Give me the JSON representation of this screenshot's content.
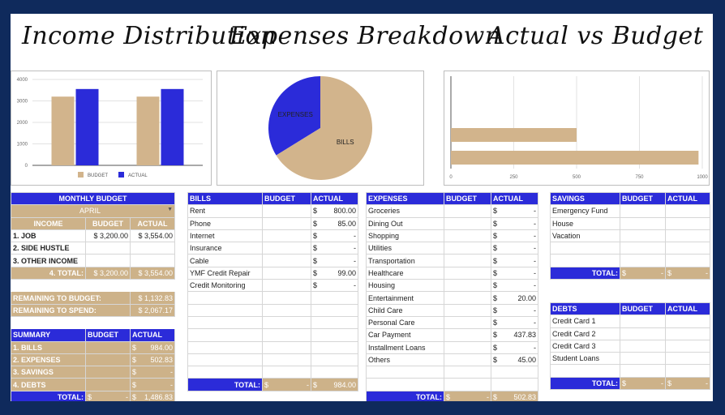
{
  "titles": {
    "income": "Income Distribution",
    "expenses": "Expenses Breakdown",
    "actual_vs_budget": "Actual vs Budget"
  },
  "colors": {
    "budget": "#d2b48c",
    "actual": "#2b2bd9",
    "header": "#2b2bd9",
    "tan": "#cdb289"
  },
  "chart_data": [
    {
      "type": "bar",
      "categories": [
        "",
        ""
      ],
      "series": [
        {
          "name": "BUDGET",
          "values": [
            3200,
            3200
          ]
        },
        {
          "name": "ACTUAL",
          "values": [
            3554,
            3554
          ]
        }
      ],
      "ylim": [
        0,
        4000
      ],
      "yticks": [
        "0",
        "1000",
        "2000",
        "3000",
        "4000"
      ],
      "legend": "bottom",
      "grid": true
    },
    {
      "type": "pie",
      "labels": [
        "EXPENSES",
        "BILLS"
      ],
      "values": [
        502.83,
        984.0
      ]
    },
    {
      "type": "bar",
      "orientation": "horizontal",
      "categories": [
        "",
        ""
      ],
      "values": [
        500,
        985
      ],
      "xlim": [
        0,
        1000
      ],
      "xticks": [
        "0",
        "250",
        "500",
        "750",
        "1000"
      ],
      "grid": true
    }
  ],
  "monthly": {
    "header": "MONTHLY BUDGET",
    "month": "APRIL",
    "cols": [
      "INCOME",
      "BUDGET",
      "ACTUAL"
    ],
    "rows": [
      {
        "label": "1. JOB",
        "budget": "$ 3,200.00",
        "actual": "$ 3,554.00"
      },
      {
        "label": "2. SIDE HUSTLE",
        "budget": "",
        "actual": ""
      },
      {
        "label": "3. OTHER INCOME",
        "budget": "",
        "actual": ""
      }
    ],
    "total_label": "4. TOTAL:",
    "total_budget": "$ 3,200.00",
    "total_actual": "$ 3,554.00",
    "remaining_budget_label": "REMAINING TO BUDGET:",
    "remaining_budget": "$ 1,132.83",
    "remaining_spend_label": "REMAINING TO SPEND:",
    "remaining_spend": "$ 2,067.17"
  },
  "summary": {
    "cols": [
      "SUMMARY",
      "BUDGET",
      "ACTUAL"
    ],
    "rows": [
      {
        "label": "1. BILLS",
        "budget": "",
        "actual_sym": "$",
        "actual": "984.00"
      },
      {
        "label": "2. EXPENSES",
        "budget": "",
        "actual_sym": "$",
        "actual": "502.83"
      },
      {
        "label": "3. SAVINGS",
        "budget": "",
        "actual_sym": "$",
        "actual": "-"
      },
      {
        "label": "4. DEBTS",
        "budget": "",
        "actual_sym": "$",
        "actual": "-"
      }
    ],
    "total_label": "TOTAL:",
    "total_budget_sym": "$",
    "total_budget": "-",
    "total_actual_sym": "$",
    "total_actual": "1,486.83"
  },
  "bills": {
    "cols": [
      "BILLS",
      "BUDGET",
      "ACTUAL"
    ],
    "rows": [
      {
        "label": "Rent",
        "sym": "$",
        "actual": "800.00"
      },
      {
        "label": "Phone",
        "sym": "$",
        "actual": "85.00"
      },
      {
        "label": "Internet",
        "sym": "$",
        "actual": "-"
      },
      {
        "label": "Insurance",
        "sym": "$",
        "actual": "-"
      },
      {
        "label": "Cable",
        "sym": "$",
        "actual": "-"
      },
      {
        "label": "YMF Credit Repair",
        "sym": "$",
        "actual": "99.00"
      },
      {
        "label": "Credit Monitoring",
        "sym": "$",
        "actual": "-"
      }
    ],
    "total_label": "TOTAL:",
    "total_budget_sym": "$",
    "total_budget": "-",
    "total_actual_sym": "$",
    "total_actual": "984.00"
  },
  "expenses": {
    "cols": [
      "EXPENSES",
      "BUDGET",
      "ACTUAL"
    ],
    "rows": [
      {
        "label": "Groceries",
        "sym": "$",
        "actual": "-"
      },
      {
        "label": "Dining Out",
        "sym": "$",
        "actual": "-"
      },
      {
        "label": "Shopping",
        "sym": "$",
        "actual": "-"
      },
      {
        "label": "Utilities",
        "sym": "$",
        "actual": "-"
      },
      {
        "label": "Transportation",
        "sym": "$",
        "actual": "-"
      },
      {
        "label": "Healthcare",
        "sym": "$",
        "actual": "-"
      },
      {
        "label": "Housing",
        "sym": "$",
        "actual": "-"
      },
      {
        "label": "Entertainment",
        "sym": "$",
        "actual": "20.00"
      },
      {
        "label": "Child Care",
        "sym": "$",
        "actual": "-"
      },
      {
        "label": "Personal Care",
        "sym": "$",
        "actual": "-"
      },
      {
        "label": "Car Payment",
        "sym": "$",
        "actual": "437.83"
      },
      {
        "label": "Installment Loans",
        "sym": "$",
        "actual": "-"
      },
      {
        "label": "Others",
        "sym": "$",
        "actual": "45.00"
      }
    ],
    "total_label": "TOTAL:",
    "total_budget_sym": "$",
    "total_budget": "-",
    "total_actual_sym": "$",
    "total_actual": "502.83"
  },
  "savings": {
    "cols": [
      "SAVINGS",
      "BUDGET",
      "ACTUAL"
    ],
    "rows": [
      {
        "label": "Emergency Fund"
      },
      {
        "label": "House"
      },
      {
        "label": "Vacation"
      }
    ],
    "total_label": "TOTAL:",
    "total_budget_sym": "$",
    "total_budget": "-",
    "total_actual_sym": "$",
    "total_actual": "-"
  },
  "debts": {
    "cols": [
      "DEBTS",
      "BUDGET",
      "ACTUAL"
    ],
    "rows": [
      {
        "label": "Credit Card 1"
      },
      {
        "label": "Credit Card 2"
      },
      {
        "label": "Credit Card 3"
      },
      {
        "label": "Student Loans"
      }
    ],
    "total_label": "TOTAL:",
    "total_budget_sym": "$",
    "total_budget": "-",
    "total_actual_sym": "$",
    "total_actual": "-"
  }
}
